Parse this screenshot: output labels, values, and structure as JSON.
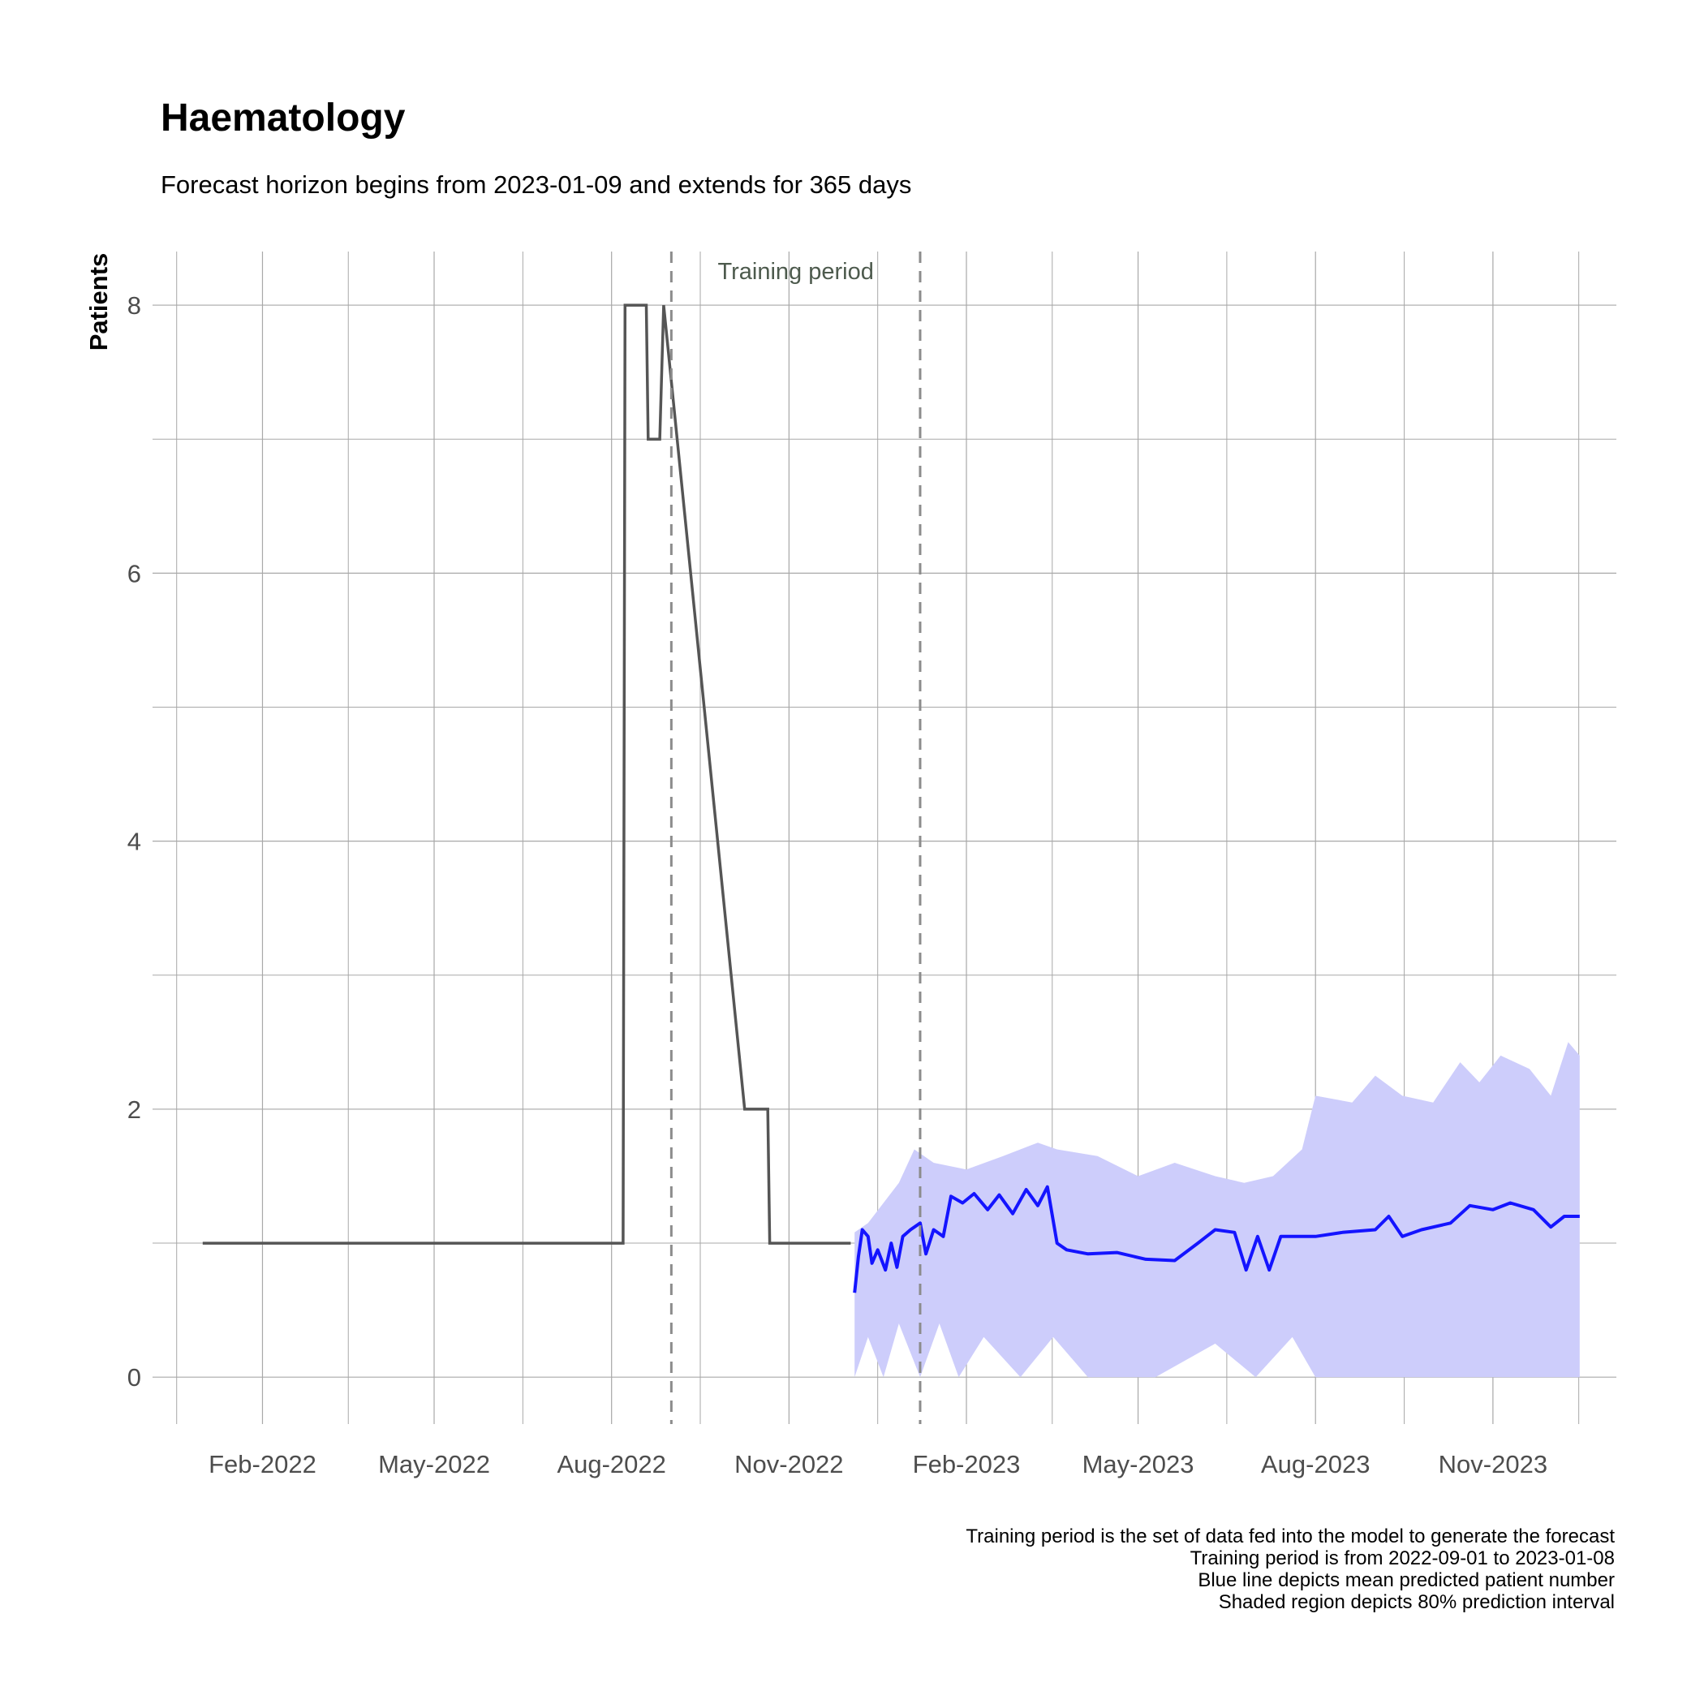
{
  "chart_data": {
    "type": "line",
    "title": "Haematology",
    "subtitle": "Forecast horizon begins from 2023-01-09 and extends for 365 days",
    "xlabel": "",
    "ylabel": "Patients",
    "ylim": [
      -0.35,
      8.4
    ],
    "xlim": [
      "2021-12-06",
      "2024-01-04"
    ],
    "grid": true,
    "y_ticks": [
      0,
      2,
      4,
      6,
      8
    ],
    "x_ticks": [
      {
        "date": "2022-02-01",
        "label": "Feb-2022"
      },
      {
        "date": "2022-05-01",
        "label": "May-2022"
      },
      {
        "date": "2022-08-01",
        "label": "Aug-2022"
      },
      {
        "date": "2022-11-01",
        "label": "Nov-2022"
      },
      {
        "date": "2023-02-01",
        "label": "Feb-2023"
      },
      {
        "date": "2023-05-01",
        "label": "May-2023"
      },
      {
        "date": "2023-08-01",
        "label": "Aug-2023"
      },
      {
        "date": "2023-11-01",
        "label": "Nov-2023"
      }
    ],
    "annotation": "Training period",
    "training_period": [
      "2022-09-01",
      "2023-01-08"
    ],
    "colors": {
      "observed": "#555555",
      "forecast": "#1414ff",
      "interval": "#cdcdfb",
      "vline": "#8c8c8c",
      "grid": "#a8a8a8"
    },
    "series": [
      {
        "role": "observed",
        "points": [
          [
            "2022-01-01",
            1
          ],
          [
            "2022-08-07",
            1
          ],
          [
            "2022-08-08",
            8
          ],
          [
            "2022-08-19",
            8
          ],
          [
            "2022-08-20",
            7
          ],
          [
            "2022-08-26",
            7
          ],
          [
            "2022-08-28",
            8
          ],
          [
            "2022-10-09",
            2
          ],
          [
            "2022-10-21",
            2
          ],
          [
            "2022-10-22",
            1
          ],
          [
            "2022-12-03",
            1
          ]
        ]
      },
      {
        "role": "forecast_mean",
        "points": [
          [
            "2022-12-05",
            0.63
          ],
          [
            "2022-12-07",
            0.9
          ],
          [
            "2022-12-09",
            1.1
          ],
          [
            "2022-12-12",
            1.05
          ],
          [
            "2022-12-14",
            0.85
          ],
          [
            "2022-12-17",
            0.95
          ],
          [
            "2022-12-21",
            0.8
          ],
          [
            "2022-12-24",
            1.0
          ],
          [
            "2022-12-27",
            0.82
          ],
          [
            "2022-12-30",
            1.05
          ],
          [
            "2023-01-03",
            1.1
          ],
          [
            "2023-01-08",
            1.15
          ],
          [
            "2023-01-11",
            0.92
          ],
          [
            "2023-01-15",
            1.1
          ],
          [
            "2023-01-20",
            1.05
          ],
          [
            "2023-01-24",
            1.35
          ],
          [
            "2023-01-30",
            1.3
          ],
          [
            "2023-02-05",
            1.37
          ],
          [
            "2023-02-12",
            1.25
          ],
          [
            "2023-02-18",
            1.36
          ],
          [
            "2023-02-25",
            1.22
          ],
          [
            "2023-03-04",
            1.4
          ],
          [
            "2023-03-10",
            1.28
          ],
          [
            "2023-03-15",
            1.42
          ],
          [
            "2023-03-20",
            1.0
          ],
          [
            "2023-03-25",
            0.95
          ],
          [
            "2023-04-05",
            0.92
          ],
          [
            "2023-04-20",
            0.93
          ],
          [
            "2023-05-05",
            0.88
          ],
          [
            "2023-05-20",
            0.87
          ],
          [
            "2023-06-01",
            1.0
          ],
          [
            "2023-06-10",
            1.1
          ],
          [
            "2023-06-20",
            1.08
          ],
          [
            "2023-06-26",
            0.8
          ],
          [
            "2023-07-02",
            1.05
          ],
          [
            "2023-07-08",
            0.8
          ],
          [
            "2023-07-14",
            1.05
          ],
          [
            "2023-07-20",
            1.05
          ],
          [
            "2023-08-01",
            1.05
          ],
          [
            "2023-08-15",
            1.08
          ],
          [
            "2023-09-01",
            1.1
          ],
          [
            "2023-09-08",
            1.2
          ],
          [
            "2023-09-15",
            1.05
          ],
          [
            "2023-09-25",
            1.1
          ],
          [
            "2023-10-10",
            1.15
          ],
          [
            "2023-10-20",
            1.28
          ],
          [
            "2023-11-01",
            1.25
          ],
          [
            "2023-11-10",
            1.3
          ],
          [
            "2023-11-22",
            1.25
          ],
          [
            "2023-12-01",
            1.12
          ],
          [
            "2023-12-08",
            1.2
          ],
          [
            "2023-12-16",
            1.2
          ]
        ]
      },
      {
        "role": "prediction_interval_80",
        "upper": [
          [
            "2022-12-05",
            1.08
          ],
          [
            "2022-12-12",
            1.15
          ],
          [
            "2022-12-20",
            1.3
          ],
          [
            "2022-12-28",
            1.45
          ],
          [
            "2023-01-05",
            1.7
          ],
          [
            "2023-01-15",
            1.6
          ],
          [
            "2023-02-01",
            1.55
          ],
          [
            "2023-02-20",
            1.65
          ],
          [
            "2023-03-10",
            1.75
          ],
          [
            "2023-03-20",
            1.7
          ],
          [
            "2023-04-10",
            1.65
          ],
          [
            "2023-05-01",
            1.5
          ],
          [
            "2023-05-20",
            1.6
          ],
          [
            "2023-06-10",
            1.5
          ],
          [
            "2023-06-25",
            1.45
          ],
          [
            "2023-07-10",
            1.5
          ],
          [
            "2023-07-25",
            1.7
          ],
          [
            "2023-08-01",
            2.1
          ],
          [
            "2023-08-20",
            2.05
          ],
          [
            "2023-09-01",
            2.25
          ],
          [
            "2023-09-15",
            2.1
          ],
          [
            "2023-10-01",
            2.05
          ],
          [
            "2023-10-15",
            2.35
          ],
          [
            "2023-10-25",
            2.2
          ],
          [
            "2023-11-05",
            2.4
          ],
          [
            "2023-11-20",
            2.3
          ],
          [
            "2023-12-01",
            2.1
          ],
          [
            "2023-12-10",
            2.5
          ],
          [
            "2023-12-16",
            2.4
          ]
        ],
        "lower": [
          [
            "2022-12-05",
            0.0
          ],
          [
            "2022-12-12",
            0.3
          ],
          [
            "2022-12-20",
            0.0
          ],
          [
            "2022-12-28",
            0.4
          ],
          [
            "2023-01-08",
            0.0
          ],
          [
            "2023-01-18",
            0.4
          ],
          [
            "2023-01-28",
            0.0
          ],
          [
            "2023-02-10",
            0.3
          ],
          [
            "2023-03-01",
            0.0
          ],
          [
            "2023-03-18",
            0.3
          ],
          [
            "2023-04-05",
            0.0
          ],
          [
            "2023-05-10",
            0.0
          ],
          [
            "2023-06-10",
            0.25
          ],
          [
            "2023-07-01",
            0.0
          ],
          [
            "2023-07-20",
            0.3
          ],
          [
            "2023-08-01",
            0.0
          ],
          [
            "2023-12-16",
            0.0
          ]
        ]
      }
    ]
  },
  "caption": [
    "Training period is the set of data fed into the model to generate the forecast",
    "Training period is from 2022-09-01 to 2023-01-08",
    "Blue line depicts mean predicted patient number",
    "Shaded region depicts 80% prediction interval"
  ]
}
